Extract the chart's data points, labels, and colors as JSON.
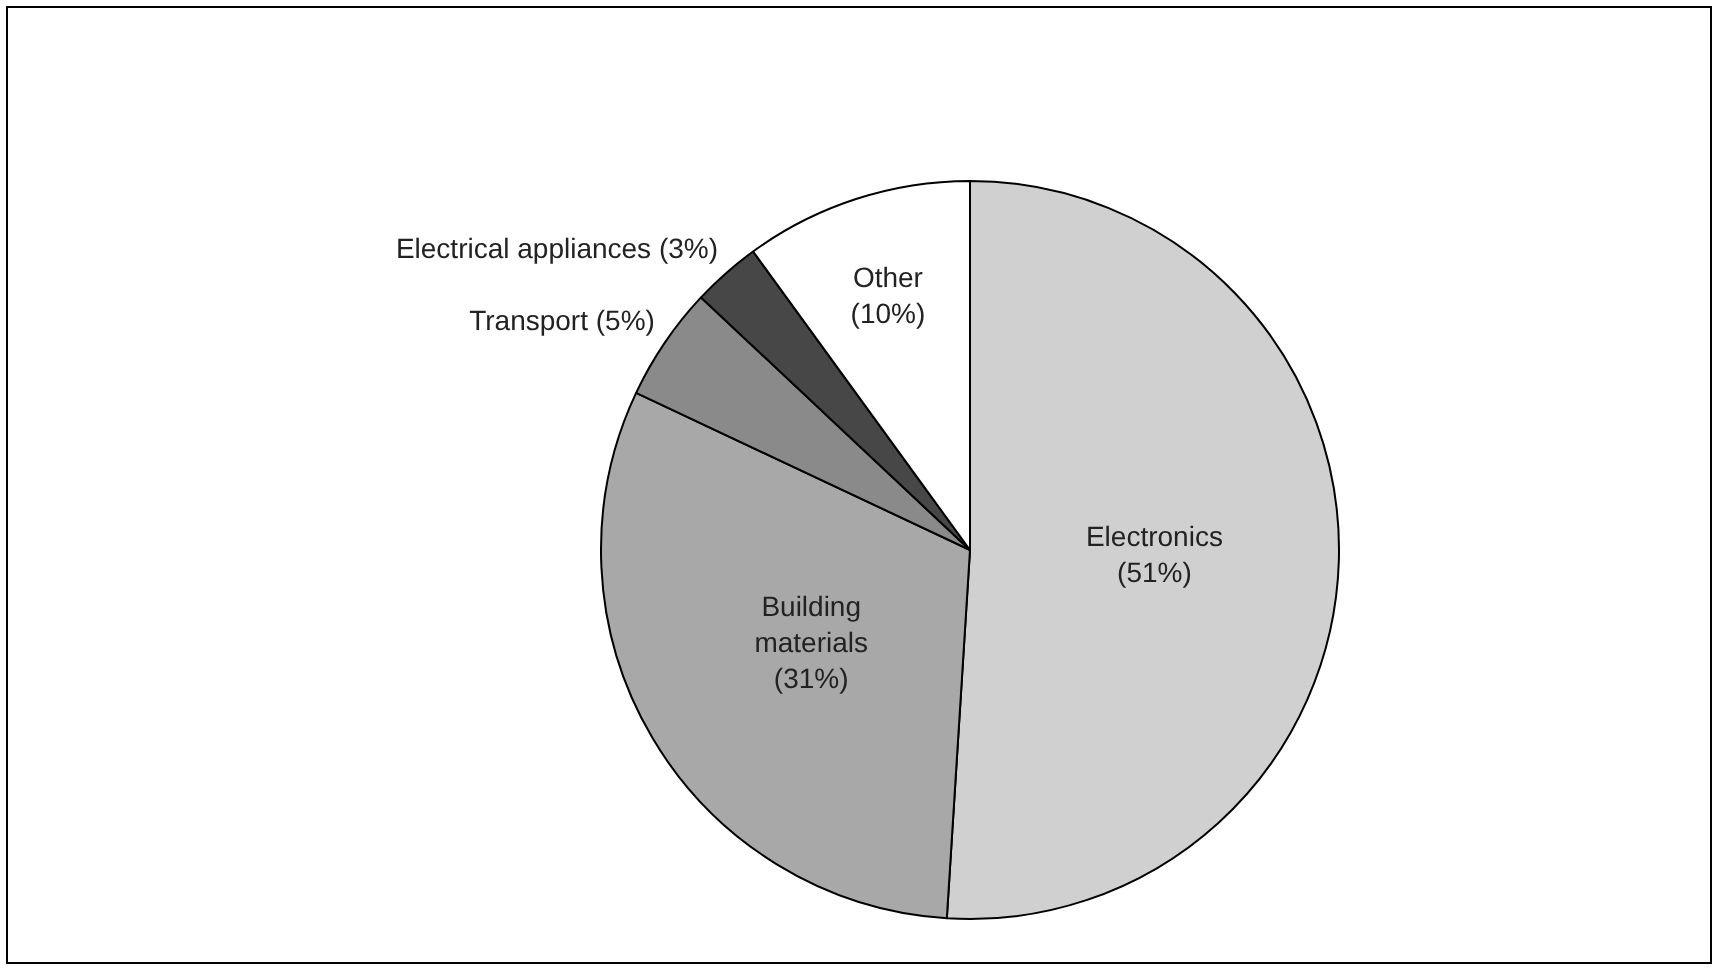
{
  "chart_data": {
    "type": "pie",
    "categories": [
      "Electronics",
      "Building materials",
      "Transport",
      "Electrical appliances",
      "Other"
    ],
    "values": [
      51,
      31,
      5,
      3,
      10
    ],
    "value_labels": [
      "(51%)",
      "(31%)",
      "(5%)",
      "(3%)",
      "(10%)"
    ],
    "colors": [
      "#d0d0d0",
      "#a8a8a8",
      "#8a8a8a",
      "#474747",
      "#ffffff"
    ]
  }
}
